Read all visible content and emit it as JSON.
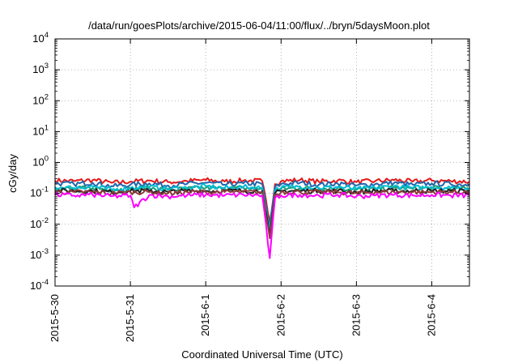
{
  "chart_data": {
    "type": "line",
    "title": "/data/run/goesPlots/archive/2015-06-04/11:00/flux/../bryn/5daysMoon.plot",
    "xlabel": "Coordinated Universal Time (UTC)",
    "ylabel": "cGy/day",
    "y_scale": "log",
    "ylim": [
      0.0001,
      10000
    ],
    "xlim": [
      0,
      5.5
    ],
    "x_unit": "days since 2015-5-30 00:00 UTC",
    "grid": true,
    "legend": "none",
    "x_ticks": [
      {
        "value": 0,
        "label": "2015-5-30"
      },
      {
        "value": 1,
        "label": "2015-5-31"
      },
      {
        "value": 2,
        "label": "2015-6-1"
      },
      {
        "value": 3,
        "label": "2015-6-2"
      },
      {
        "value": 4,
        "label": "2015-6-3"
      },
      {
        "value": 5,
        "label": "2015-6-4"
      }
    ],
    "y_ticks": [
      {
        "value": 0.0001,
        "base": "10",
        "exp": "-4"
      },
      {
        "value": 0.001,
        "base": "10",
        "exp": "-3"
      },
      {
        "value": 0.01,
        "base": "10",
        "exp": "-2"
      },
      {
        "value": 0.1,
        "base": "10",
        "exp": "-1"
      },
      {
        "value": 1,
        "base": "10",
        "exp": "0"
      },
      {
        "value": 10,
        "base": "10",
        "exp": "1"
      },
      {
        "value": 100,
        "base": "10",
        "exp": "2"
      },
      {
        "value": 1000,
        "base": "10",
        "exp": "3"
      },
      {
        "value": 10000,
        "base": "10",
        "exp": "4"
      }
    ],
    "series": [
      {
        "name": "",
        "color": "#e41a1c",
        "x": [
          0,
          0.25,
          0.5,
          0.75,
          1,
          1.25,
          1.5,
          1.75,
          2,
          2.25,
          2.5,
          2.75,
          2.85,
          2.92,
          3,
          3.25,
          3.5,
          3.75,
          4,
          4.25,
          4.5,
          4.75,
          5,
          5.25,
          5.5
        ],
        "values": [
          0.26,
          0.25,
          0.27,
          0.22,
          0.24,
          0.26,
          0.23,
          0.25,
          0.27,
          0.24,
          0.26,
          0.25,
          0.012,
          0.2,
          0.25,
          0.27,
          0.24,
          0.26,
          0.23,
          0.25,
          0.27,
          0.24,
          0.26,
          0.25,
          0.24
        ]
      },
      {
        "name": "",
        "color": "#2166ac",
        "x": [
          0,
          0.25,
          0.5,
          0.75,
          1,
          1.25,
          1.5,
          1.75,
          2,
          2.25,
          2.5,
          2.75,
          2.85,
          2.92,
          3,
          3.25,
          3.5,
          3.75,
          4,
          4.25,
          4.5,
          4.75,
          5,
          5.25,
          5.5
        ],
        "values": [
          0.21,
          0.2,
          0.22,
          0.17,
          0.19,
          0.21,
          0.18,
          0.2,
          0.22,
          0.19,
          0.21,
          0.2,
          0.008,
          0.16,
          0.2,
          0.22,
          0.19,
          0.21,
          0.18,
          0.2,
          0.22,
          0.19,
          0.21,
          0.2,
          0.19
        ]
      },
      {
        "name": "",
        "color": "#1b9e77",
        "x": [
          0,
          0.25,
          0.5,
          0.75,
          1,
          1.25,
          1.5,
          1.75,
          2,
          2.25,
          2.5,
          2.75,
          2.85,
          2.92,
          3,
          3.25,
          3.5,
          3.75,
          4,
          4.25,
          4.5,
          4.75,
          5,
          5.25,
          5.5
        ],
        "values": [
          0.15,
          0.14,
          0.15,
          0.13,
          0.14,
          0.15,
          0.13,
          0.14,
          0.15,
          0.14,
          0.15,
          0.14,
          0.005,
          0.12,
          0.14,
          0.15,
          0.14,
          0.15,
          0.13,
          0.14,
          0.15,
          0.14,
          0.15,
          0.14,
          0.14
        ]
      },
      {
        "name": "",
        "color": "#00bcd4",
        "x": [
          0,
          0.25,
          0.5,
          0.75,
          1,
          1.25,
          1.5,
          1.75,
          2,
          2.25,
          2.5,
          2.75,
          2.85,
          2.92,
          3,
          3.25,
          3.5,
          3.75,
          4,
          4.25,
          4.5,
          4.75,
          5,
          5.25,
          5.5
        ],
        "values": [
          0.16,
          0.15,
          0.17,
          0.13,
          0.15,
          0.16,
          0.14,
          0.15,
          0.17,
          0.15,
          0.16,
          0.15,
          0.006,
          0.13,
          0.15,
          0.17,
          0.15,
          0.16,
          0.14,
          0.15,
          0.17,
          0.15,
          0.16,
          0.15,
          0.15
        ]
      },
      {
        "name": "",
        "color": "#222222",
        "x": [
          0,
          0.25,
          0.5,
          0.75,
          1,
          1.25,
          1.5,
          1.75,
          2,
          2.25,
          2.5,
          2.75,
          2.85,
          2.92,
          3,
          3.25,
          3.5,
          3.75,
          4,
          4.25,
          4.5,
          4.75,
          5,
          5.25,
          5.5
        ],
        "values": [
          0.12,
          0.12,
          0.12,
          0.11,
          0.12,
          0.12,
          0.11,
          0.12,
          0.12,
          0.12,
          0.12,
          0.12,
          0.004,
          0.1,
          0.12,
          0.12,
          0.12,
          0.12,
          0.11,
          0.12,
          0.12,
          0.12,
          0.12,
          0.12,
          0.12
        ]
      },
      {
        "name": "",
        "color": "#8e3b3b",
        "x": [
          0,
          0.25,
          0.5,
          0.75,
          1,
          1.25,
          1.5,
          1.75,
          2,
          2.25,
          2.5,
          2.75,
          2.85,
          2.92,
          3,
          3.25,
          3.5,
          3.75,
          4,
          4.25,
          4.5,
          4.75,
          5,
          5.25,
          5.5
        ],
        "values": [
          0.11,
          0.11,
          0.11,
          0.1,
          0.11,
          0.11,
          0.1,
          0.11,
          0.11,
          0.11,
          0.11,
          0.11,
          0.0035,
          0.09,
          0.11,
          0.11,
          0.11,
          0.11,
          0.1,
          0.11,
          0.11,
          0.11,
          0.11,
          0.11,
          0.11
        ]
      },
      {
        "name": "",
        "color": "#ff00ff",
        "x": [
          0,
          0.25,
          0.5,
          0.75,
          1,
          1.05,
          1.25,
          1.5,
          1.75,
          2,
          2.25,
          2.5,
          2.75,
          2.85,
          2.92,
          3,
          3.25,
          3.5,
          3.75,
          4,
          4.25,
          4.5,
          4.75,
          5,
          5.25,
          5.5
        ],
        "values": [
          0.09,
          0.085,
          0.09,
          0.08,
          0.085,
          0.035,
          0.088,
          0.08,
          0.085,
          0.09,
          0.085,
          0.09,
          0.085,
          0.0008,
          0.07,
          0.085,
          0.09,
          0.085,
          0.09,
          0.08,
          0.085,
          0.09,
          0.085,
          0.09,
          0.085,
          0.085
        ]
      }
    ]
  }
}
